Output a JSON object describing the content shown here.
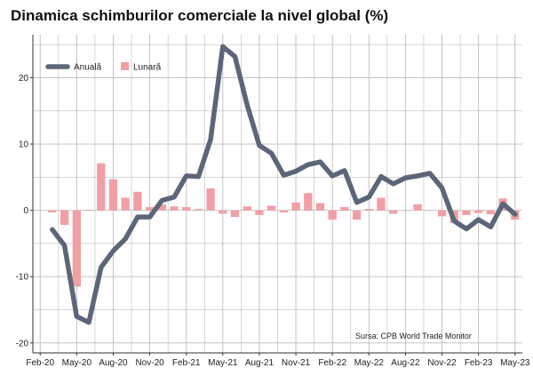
{
  "chart_data": {
    "type": "bar+line",
    "title": "Dinamica schimburilor comerciale la nivel global (%)",
    "source": "Sursa: CPB World Trade Monitor",
    "x": [
      "2020-01",
      "2020-02",
      "2020-03",
      "2020-04",
      "2020-05",
      "2020-06",
      "2020-07",
      "2020-08",
      "2020-09",
      "2020-10",
      "2020-11",
      "2020-12",
      "2021-01",
      "2021-02",
      "2021-03",
      "2021-04",
      "2021-05",
      "2021-06",
      "2021-07",
      "2021-08",
      "2021-09",
      "2021-10",
      "2021-11",
      "2021-12",
      "2022-01",
      "2022-02",
      "2022-03",
      "2022-04",
      "2022-05",
      "2022-06",
      "2022-07",
      "2022-08",
      "2022-09",
      "2022-10",
      "2022-11",
      "2022-12",
      "2023-01",
      "2023-02",
      "2023-03"
    ],
    "xticks": [
      {
        "pos": -1,
        "label": "Feb-20"
      },
      {
        "pos": 2,
        "label": "May-20"
      },
      {
        "pos": 5,
        "label": "Aug-20"
      },
      {
        "pos": 8,
        "label": "Nov-20"
      },
      {
        "pos": 11,
        "label": "Feb-21"
      },
      {
        "pos": 14,
        "label": "May-21"
      },
      {
        "pos": 17,
        "label": "Aug-21"
      },
      {
        "pos": 20,
        "label": "Nov-21"
      },
      {
        "pos": 23,
        "label": "Feb-22"
      },
      {
        "pos": 26,
        "label": "May-22"
      },
      {
        "pos": 29,
        "label": "Aug-22"
      },
      {
        "pos": 32,
        "label": "Nov-22"
      },
      {
        "pos": 35,
        "label": "Feb-23"
      },
      {
        "pos": 38,
        "label": "May-23"
      }
    ],
    "yticks": [
      -20,
      -10,
      0,
      10,
      20
    ],
    "ylim": [
      -21.5,
      26.5
    ],
    "grid": true,
    "legend_position": "top-left",
    "series": [
      {
        "name": "Lunară",
        "type": "bar",
        "color": "#f0a0a5",
        "values": [
          -0.3,
          -2.2,
          -11.5,
          0.1,
          7.1,
          4.7,
          1.9,
          2.8,
          0.5,
          0.9,
          0.6,
          0.5,
          0.2,
          3.3,
          -0.5,
          -1.0,
          0.6,
          -0.7,
          0.7,
          -0.3,
          1.2,
          2.6,
          1.1,
          -1.4,
          0.5,
          -1.4,
          0.2,
          1.9,
          -0.5,
          0.0,
          0.9,
          0.0,
          -0.9,
          -1.9,
          -0.7,
          -0.4,
          -0.6,
          1.8,
          -1.4
        ]
      },
      {
        "name": "Anuală",
        "type": "line",
        "color": "#5c6678",
        "values": [
          -2.9,
          -5.3,
          -16.0,
          -16.9,
          -8.6,
          -6.1,
          -4.3,
          -1.0,
          -1.0,
          1.5,
          2.0,
          5.2,
          5.1,
          10.7,
          24.7,
          23.2,
          15.9,
          9.8,
          8.6,
          5.3,
          5.9,
          6.9,
          7.3,
          5.2,
          6.0,
          1.2,
          2.0,
          5.1,
          4.0,
          4.9,
          5.2,
          5.6,
          3.4,
          -1.6,
          -2.8,
          -1.4,
          -2.5,
          1.0,
          -0.6
        ]
      }
    ]
  },
  "colors": {
    "grid": "#bdbdbd",
    "axis": "#333333"
  }
}
